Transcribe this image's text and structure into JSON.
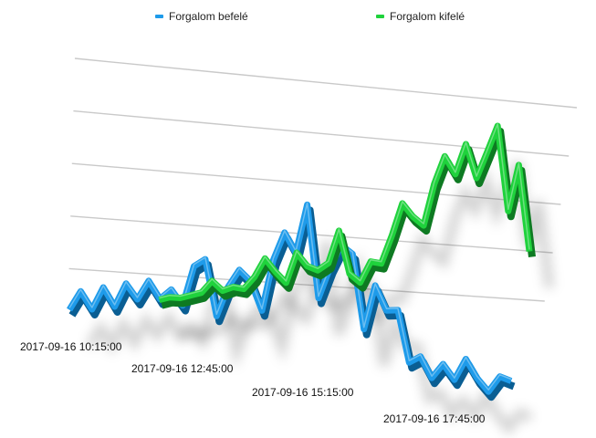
{
  "chart_data": {
    "type": "line",
    "style": "3d-ribbon",
    "title": "",
    "xlabel": "",
    "ylabel": "",
    "grid": true,
    "legend_position": "top",
    "x_tick_labels": [
      "2017-09-16 10:15:00",
      "2017-09-16 12:45:00",
      "2017-09-16 15:15:00",
      "2017-09-16 17:45:00"
    ],
    "series": [
      {
        "name": "Forgalom befelé",
        "color": "#1e9bea",
        "values": [
          10,
          28,
          14,
          35,
          20,
          42,
          30,
          48,
          34,
          44,
          32,
          68,
          76,
          28,
          55,
          72,
          64,
          40,
          86,
          112,
          96,
          140,
          60,
          88,
          110,
          104,
          40,
          80,
          60,
          62,
          18,
          25,
          8,
          22,
          10,
          30,
          15,
          5,
          20,
          18
        ]
      },
      {
        "name": "Forgalom kifelé",
        "color": "#1fd23c",
        "values": [
          null,
          null,
          null,
          null,
          3,
          5,
          4,
          6,
          8,
          18,
          9,
          12,
          10,
          20,
          36,
          24,
          14,
          40,
          28,
          24,
          30,
          58,
          20,
          12,
          30,
          28,
          52,
          80,
          68,
          60,
          96,
          120,
          104,
          130,
          100,
          122,
          145,
          70,
          110,
          34
        ]
      }
    ]
  }
}
